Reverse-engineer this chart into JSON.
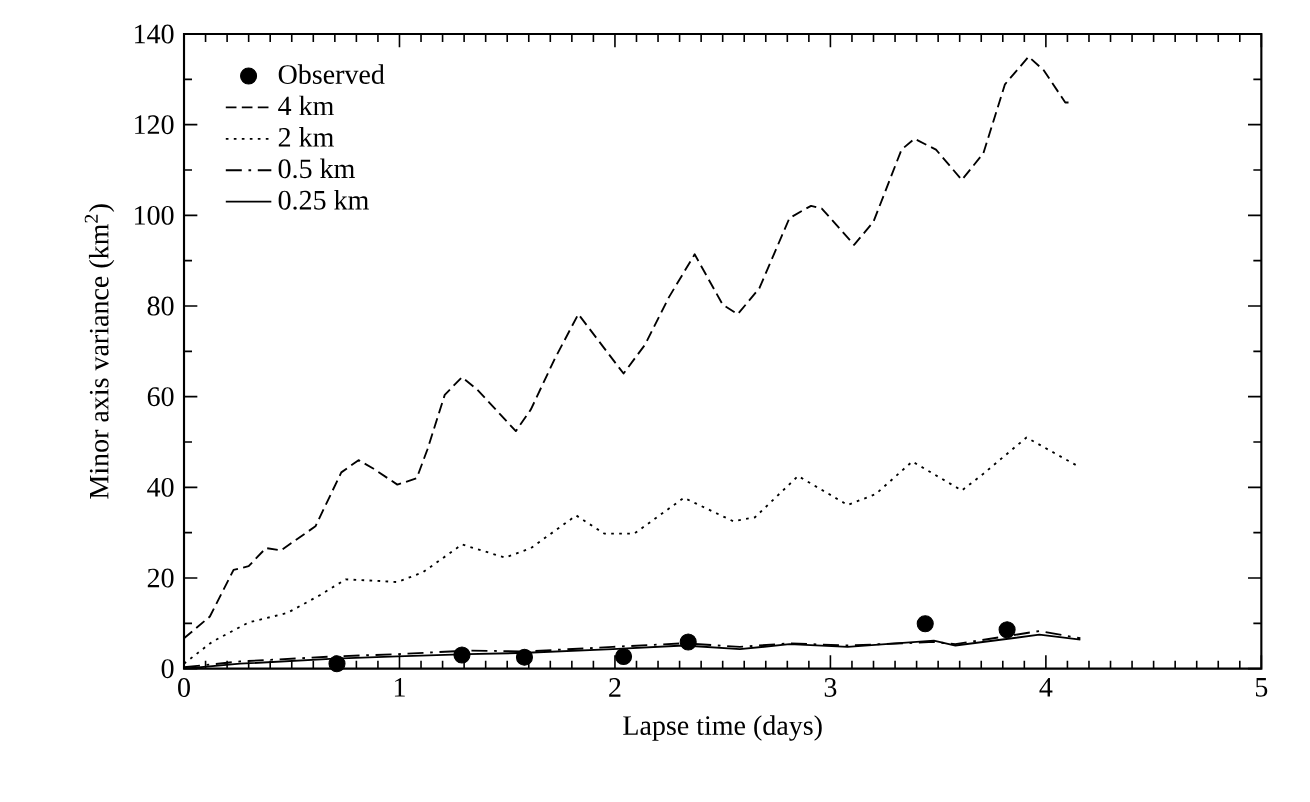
{
  "chart_data": {
    "type": "line",
    "xlabel": "Lapse time (days)",
    "ylabel": "Minor axis variance (km$^{2}$)",
    "xlim": [
      0,
      5
    ],
    "ylim": [
      0,
      140
    ],
    "xticks": [
      0,
      1,
      2,
      3,
      4,
      5
    ],
    "yticks": [
      0,
      20,
      40,
      60,
      80,
      100,
      120,
      140
    ],
    "legend": "top left",
    "grid": false,
    "series": [
      {
        "name": "Observed",
        "type": "scatter",
        "marker": "circle",
        "color": "#000000",
        "x": [
          0.71,
          1.29,
          1.58,
          2.04,
          2.34,
          3.44,
          3.82
        ],
        "values": [
          1.1,
          3.0,
          2.5,
          2.7,
          5.9,
          9.9,
          8.6
        ]
      },
      {
        "name": "4 km",
        "line_style": "dashed",
        "color": "#000000",
        "x": [
          0,
          0.12,
          0.23,
          0.3,
          0.38,
          0.45,
          0.61,
          0.73,
          0.81,
          0.88,
          0.99,
          1.08,
          1.13,
          1.21,
          1.29,
          1.36,
          1.54,
          1.61,
          1.72,
          1.83,
          2.04,
          2.14,
          2.25,
          2.37,
          2.5,
          2.57,
          2.67,
          2.81,
          2.91,
          2.96,
          3.11,
          3.2,
          3.33,
          3.39,
          3.49,
          3.61,
          3.71,
          3.81,
          3.92,
          3.99,
          4.09,
          4.12
        ],
        "values": [
          6.7,
          11.5,
          21.8,
          22.6,
          26.6,
          26.1,
          31.4,
          43.3,
          46,
          44.1,
          40.6,
          42,
          48.4,
          60.4,
          64.3,
          61.6,
          52.4,
          57.2,
          68.3,
          78.2,
          65.1,
          71.5,
          81.9,
          91.4,
          80.3,
          78.2,
          83.9,
          99.4,
          102.1,
          101.5,
          93.5,
          98.6,
          114.5,
          116.9,
          114.5,
          107.8,
          113.7,
          128.9,
          135,
          132,
          124.9,
          124.9
        ]
      },
      {
        "name": "2 km",
        "line_style": "dotted",
        "color": "#000000",
        "x": [
          0,
          0.13,
          0.3,
          0.48,
          0.63,
          0.75,
          0.89,
          0.99,
          1.11,
          1.29,
          1.49,
          1.61,
          1.82,
          1.95,
          2.09,
          2.32,
          2.55,
          2.65,
          2.85,
          3.08,
          3.21,
          3.38,
          3.61,
          3.71,
          3.91,
          4.14
        ],
        "values": [
          1.1,
          5.9,
          10.2,
          12.3,
          16.2,
          19.7,
          19.4,
          19.1,
          21.3,
          27.4,
          24.5,
          26.6,
          33.8,
          29.8,
          29.8,
          37.7,
          32.5,
          33.4,
          42.5,
          36.1,
          38.5,
          45.7,
          39.3,
          43,
          51,
          44.9
        ]
      },
      {
        "name": "0.5 km",
        "line_style": "dashdot",
        "color": "#000000",
        "x": [
          0,
          0.26,
          0.7,
          0.99,
          1.32,
          1.59,
          1.99,
          2.32,
          2.58,
          2.81,
          3.08,
          3.48,
          3.58,
          3.97,
          4.16
        ],
        "values": [
          0.3,
          1.6,
          2.7,
          3.2,
          4.0,
          3.8,
          4.8,
          5.6,
          4.8,
          5.6,
          5.1,
          5.9,
          5.4,
          8.3,
          6.7
        ]
      },
      {
        "name": "0.25 km",
        "line_style": "solid",
        "color": "#000000",
        "x": [
          0,
          0.26,
          0.7,
          0.99,
          1.32,
          1.59,
          1.99,
          2.32,
          2.58,
          2.81,
          3.08,
          3.48,
          3.58,
          3.97,
          4.16
        ],
        "values": [
          0,
          1.1,
          2.2,
          2.7,
          3.2,
          3.5,
          4.3,
          5.1,
          4.3,
          5.4,
          4.8,
          6.2,
          5.1,
          7.5,
          6.4
        ]
      }
    ]
  }
}
